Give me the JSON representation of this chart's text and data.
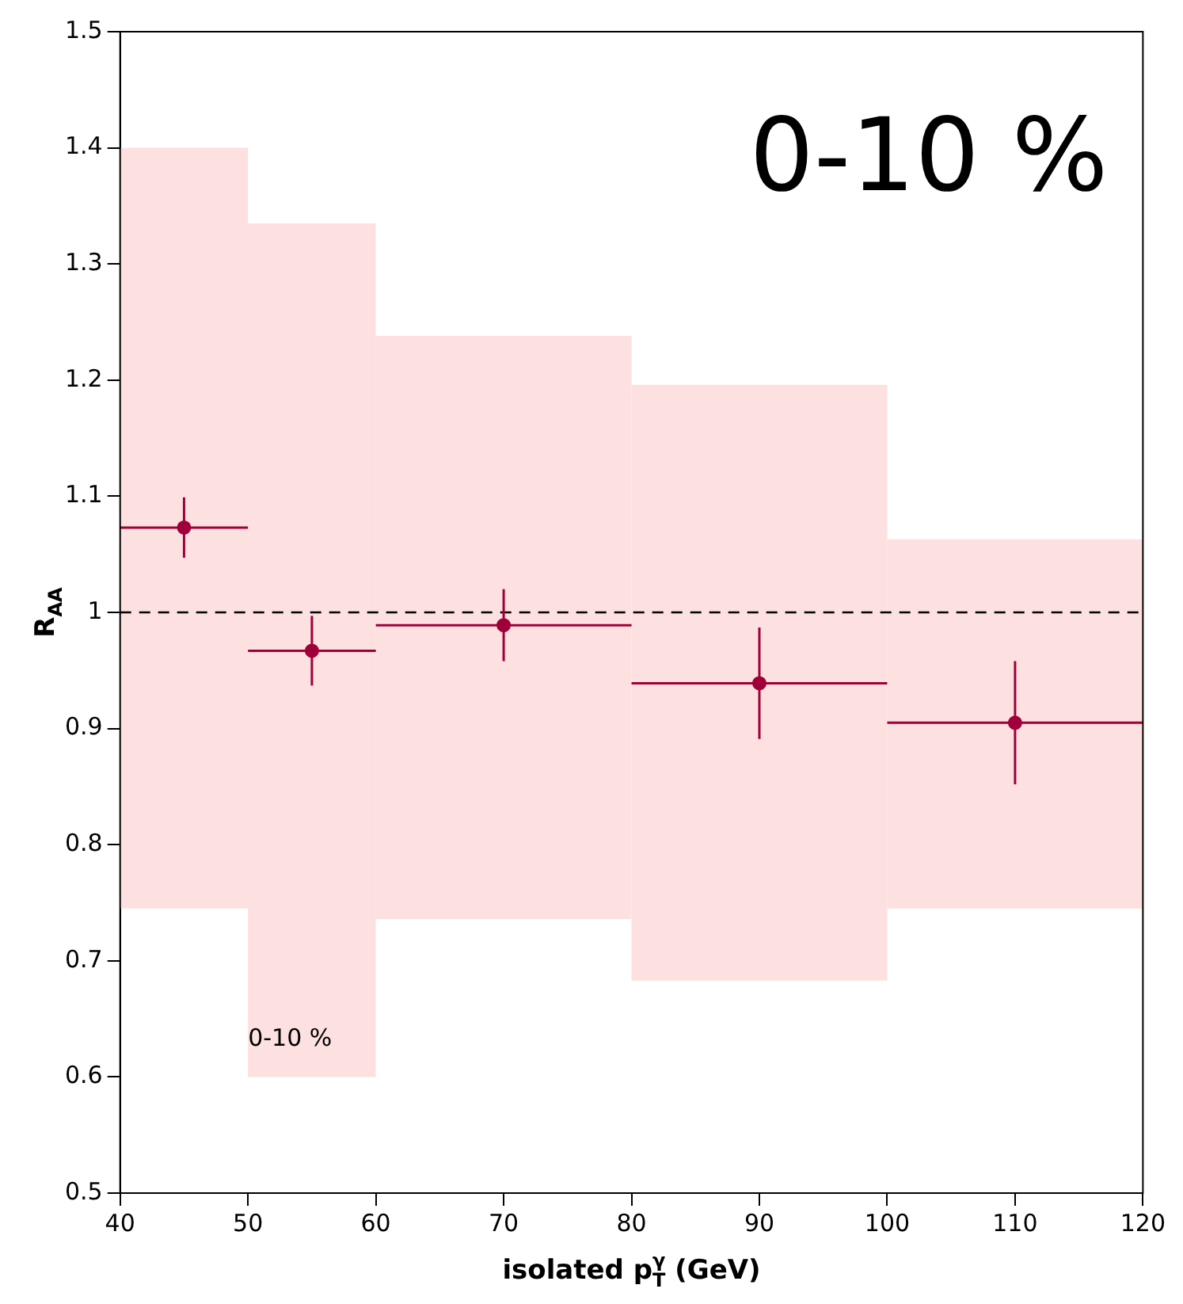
{
  "chart_data": {
    "type": "scatter",
    "xlabel": "isolated p$_{T}$$^{γ}$ (GeV)",
    "ylabel": "R$_{AA}$",
    "annotations": [
      "0-10 %",
      "0-10 %"
    ],
    "xlim": [
      40,
      120
    ],
    "xticks": [
      40,
      50,
      60,
      70,
      80,
      90,
      100,
      110,
      120
    ],
    "ylim": [
      0.5,
      1.5
    ],
    "yticks": [
      0.5,
      0.6,
      0.7,
      0.8,
      0.9,
      1,
      1.1,
      1.2,
      1.3,
      1.4,
      1.5
    ],
    "legend": false,
    "grid": false,
    "marker": "circle",
    "ref_lines": [
      {
        "axis": "y",
        "value": 1,
        "color": "#000000",
        "line_style": "dashed"
      }
    ],
    "series": [
      {
        "type": "bar",
        "color": "#fde0e0",
        "x": [
          45,
          55,
          70,
          90,
          110
        ],
        "base": [
          0.745,
          0.6,
          0.736,
          0.683,
          0.745
        ],
        "values": [
          0.655,
          0.735,
          0.502,
          0.513,
          0.318
        ]
      },
      {
        "color": "#a0003a",
        "x": [
          45,
          55,
          70,
          90,
          110
        ],
        "values": [
          1.073,
          0.967,
          0.989,
          0.939,
          0.905
        ],
        "errors": [
          0.026,
          0.03,
          0.031,
          0.048,
          0.053
        ],
        "xerrors": [
          5,
          5,
          10,
          10,
          10
        ]
      }
    ]
  }
}
